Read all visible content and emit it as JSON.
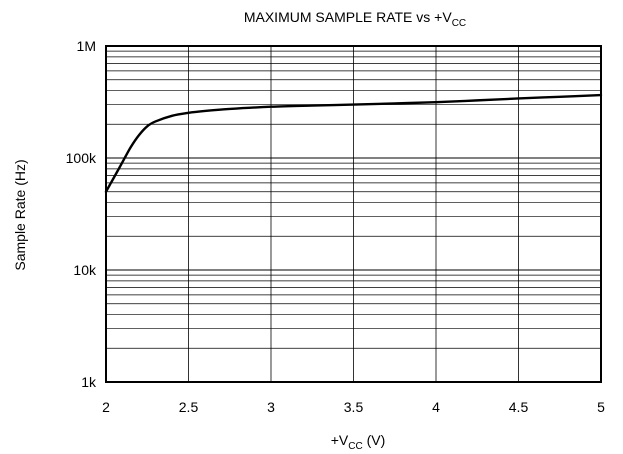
{
  "chart_data": {
    "type": "line",
    "title": {
      "main": "MAXIMUM SAMPLE RATE vs +V",
      "sub": "CC"
    },
    "xlabel": {
      "prefix": "+V",
      "sub": "CC",
      "suffix": " (V)"
    },
    "ylabel": "Sample Rate (Hz)",
    "x_scale": "linear",
    "y_scale": "log",
    "xlim": [
      2,
      5
    ],
    "ylim": [
      1000,
      1000000
    ],
    "x_ticks": [
      {
        "value": 2,
        "label": "2"
      },
      {
        "value": 2.5,
        "label": "2.5"
      },
      {
        "value": 3,
        "label": "3"
      },
      {
        "value": 3.5,
        "label": "3.5"
      },
      {
        "value": 4,
        "label": "4"
      },
      {
        "value": 4.5,
        "label": "4.5"
      },
      {
        "value": 5,
        "label": "5"
      }
    ],
    "y_ticks": [
      {
        "value": 1000,
        "label": "1k"
      },
      {
        "value": 10000,
        "label": "10k"
      },
      {
        "value": 100000,
        "label": "100k"
      },
      {
        "value": 1000000,
        "label": "1M"
      }
    ],
    "grid": true,
    "minor_log_grid": true,
    "series": [
      {
        "color": "#000000",
        "x": [
          2.0,
          2.03,
          2.06,
          2.1,
          2.15,
          2.2,
          2.25,
          2.3,
          2.4,
          2.5,
          2.6,
          2.75,
          3.0,
          3.25,
          3.5,
          3.75,
          4.0,
          4.25,
          4.5,
          4.75,
          5.0
        ],
        "y": [
          50000,
          60000,
          72000,
          92000,
          125000,
          160000,
          192000,
          212000,
          238000,
          253000,
          263000,
          274000,
          287000,
          294000,
          300000,
          307000,
          315000,
          327000,
          340000,
          352000,
          365000
        ]
      }
    ]
  }
}
